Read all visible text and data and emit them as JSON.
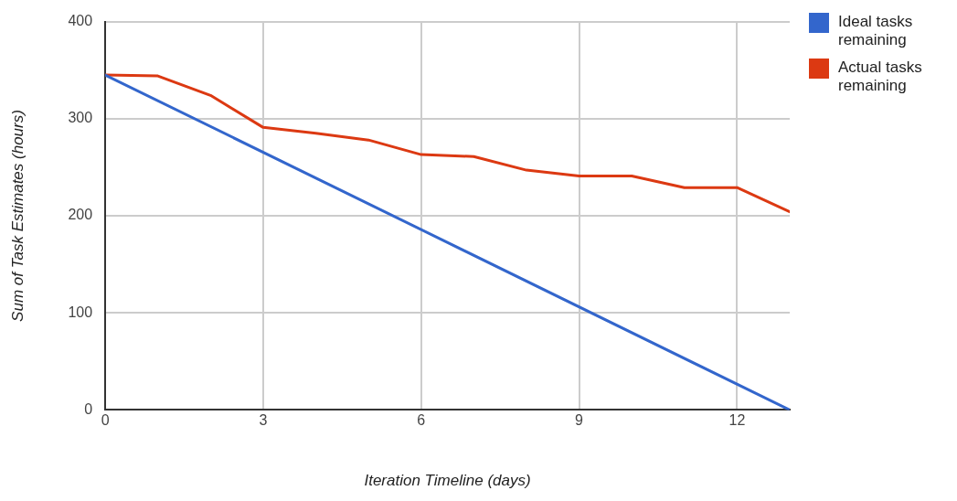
{
  "chart_data": {
    "type": "line",
    "xlabel": "Iteration Timeline (days)",
    "ylabel": "Sum of Task Estimates (hours)",
    "x": [
      0,
      1,
      2,
      3,
      4,
      5,
      6,
      7,
      8,
      9,
      10,
      11,
      12,
      13
    ],
    "xlim": [
      0,
      13
    ],
    "xticks": [
      0,
      3,
      6,
      9,
      12
    ],
    "ylim": [
      0,
      400
    ],
    "yticks": [
      0,
      100,
      200,
      300,
      400
    ],
    "grid": true,
    "legend": "right",
    "marker": "none",
    "series": [
      {
        "name": "Ideal tasks remaining",
        "color": "#3366cc",
        "x": [
          0,
          13
        ],
        "values": [
          345,
          0
        ]
      },
      {
        "name": "Actual tasks remaining",
        "color": "#dc3912",
        "values": [
          345,
          344,
          324,
          291,
          285,
          278,
          263,
          261,
          247,
          241,
          241,
          229,
          229,
          204
        ]
      }
    ]
  }
}
